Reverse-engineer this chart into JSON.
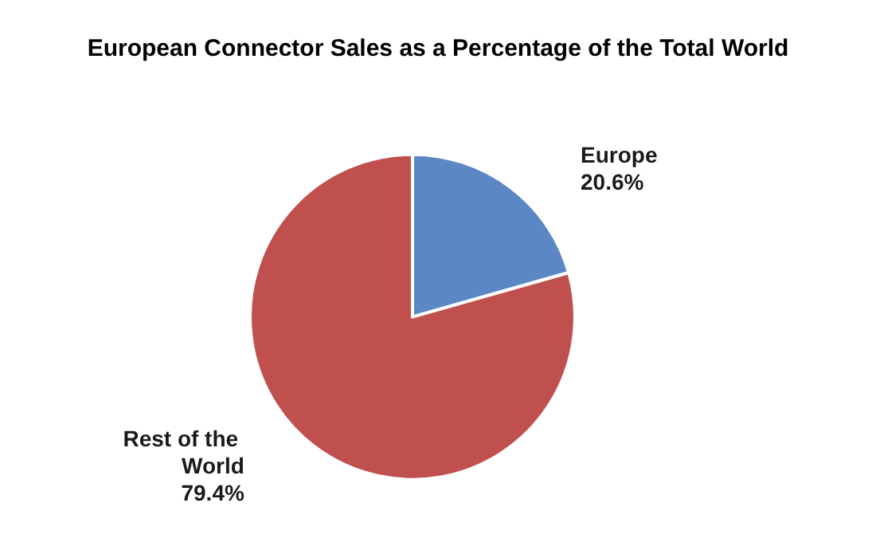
{
  "chart_data": {
    "type": "pie",
    "title": "European Connector Sales as a Percentage of the Total World",
    "categories": [
      "Europe",
      "Rest of the World"
    ],
    "values": [
      20.6,
      79.4
    ],
    "value_labels": [
      "20.6%",
      "79.4%"
    ],
    "colors": [
      "#5b87c5",
      "#c0504d"
    ],
    "legend": false
  }
}
